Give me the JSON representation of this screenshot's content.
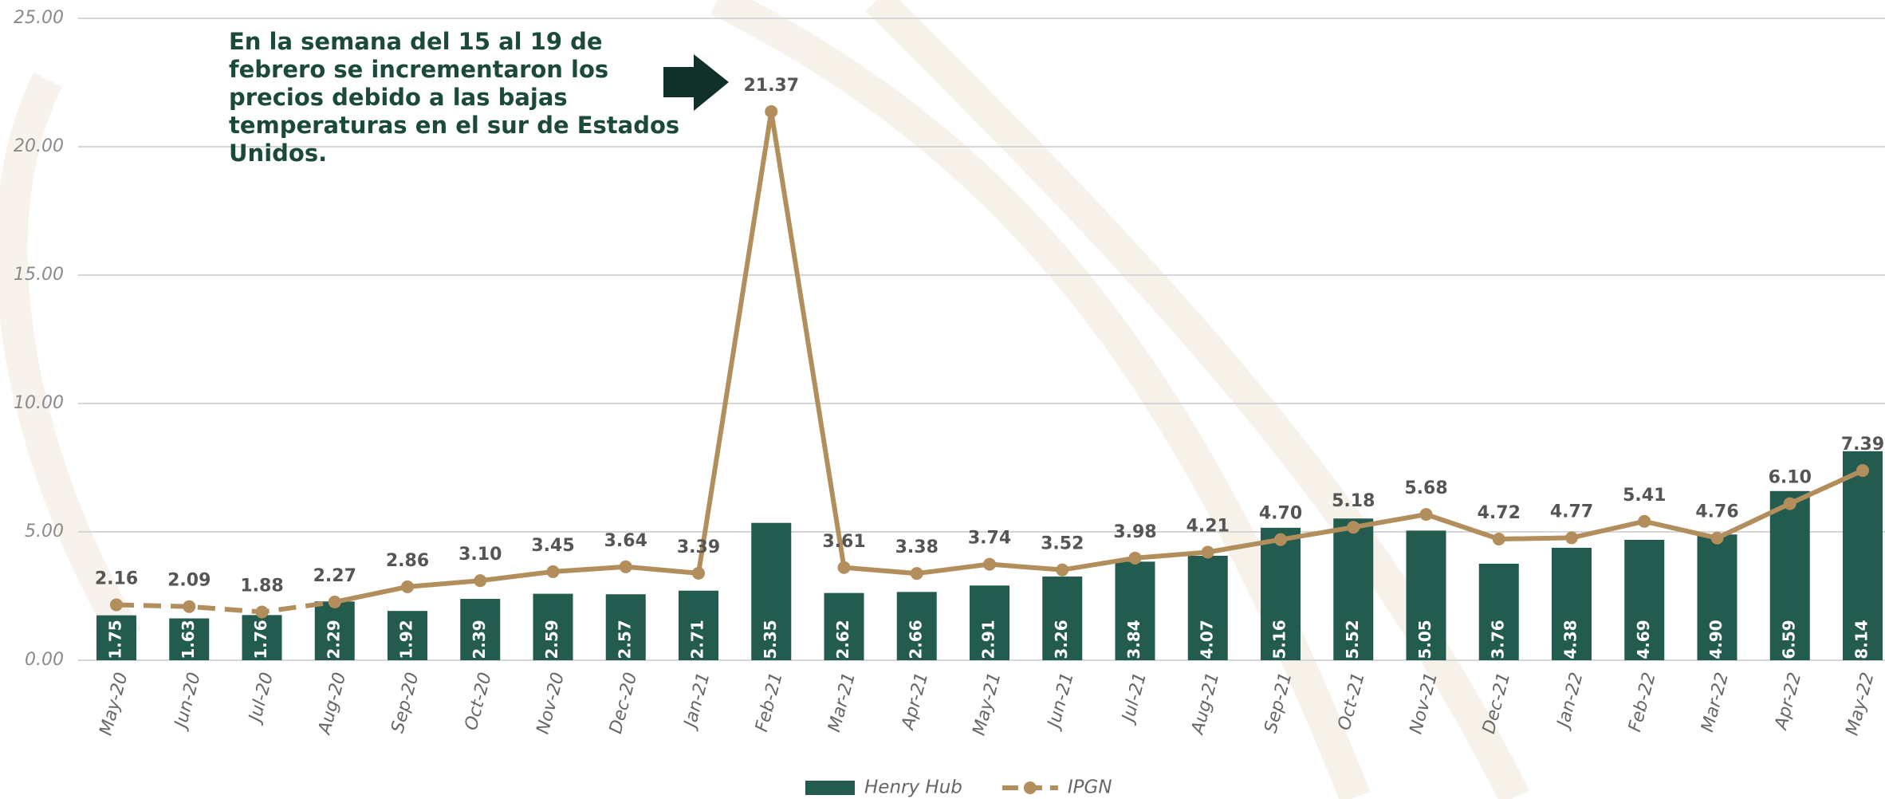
{
  "chart_data": {
    "type": "bar_line",
    "annotation": [
      "En la semana del 15 al 19 de",
      "febrero se incrementaron los",
      "precios debido a las bajas",
      "temperaturas en el sur de Estados",
      "Unidos."
    ],
    "categories": [
      "May-20",
      "Jun-20",
      "Jul-20",
      "Aug-20",
      "Sep-20",
      "Oct-20",
      "Nov-20",
      "Dec-20",
      "Jan-21",
      "Feb-21",
      "Mar-21",
      "Apr-21",
      "May-21",
      "Jun-21",
      "Jul-21",
      "Aug-21",
      "Sep-21",
      "Oct-21",
      "Nov-21",
      "Dec-21",
      "Jan-22",
      "Feb-22",
      "Mar-22",
      "Apr-22",
      "May-22"
    ],
    "series": [
      {
        "name": "Henry Hub",
        "type": "bar",
        "color": "#235b4e",
        "values": [
          1.75,
          1.63,
          1.76,
          2.29,
          1.92,
          2.39,
          2.59,
          2.57,
          2.71,
          5.35,
          2.62,
          2.66,
          2.91,
          3.26,
          3.84,
          4.07,
          5.16,
          5.52,
          5.05,
          3.76,
          4.38,
          4.69,
          4.9,
          6.59,
          8.14
        ],
        "value_labels": [
          "1.75",
          "1.63",
          "1.76",
          "2.29",
          "1.92",
          "2.39",
          "2.59",
          "2.57",
          "2.71",
          "5.35",
          "2.62",
          "2.66",
          "2.91",
          "3.26",
          "3.84",
          "4.07",
          "5.16",
          "5.52",
          "5.05",
          "3.76",
          "4.38",
          "4.69",
          "4.90",
          "6.59",
          "8.14"
        ]
      },
      {
        "name": "IPGN",
        "type": "line",
        "color": "#b38e5d",
        "dashed_until_index": 3,
        "values": [
          2.16,
          2.09,
          1.88,
          2.27,
          2.86,
          3.1,
          3.45,
          3.64,
          3.39,
          21.37,
          3.61,
          3.38,
          3.74,
          3.52,
          3.98,
          4.21,
          4.7,
          5.18,
          5.68,
          4.72,
          4.77,
          5.41,
          4.76,
          6.1,
          7.39
        ],
        "value_labels": [
          "2.16",
          "2.09",
          "1.88",
          "2.27",
          "2.86",
          "3.10",
          "3.45",
          "3.64",
          "3.39",
          "21.37",
          "3.61",
          "3.38",
          "3.74",
          "3.52",
          "3.98",
          "4.21",
          "4.70",
          "5.18",
          "5.68",
          "4.72",
          "4.77",
          "5.41",
          "4.76",
          "6.10",
          "7.39"
        ]
      }
    ],
    "ylim": [
      0,
      25
    ],
    "yticks": [
      {
        "value": 0,
        "label": "0.00"
      },
      {
        "value": 5,
        "label": "5.00"
      },
      {
        "value": 10,
        "label": "10.00"
      },
      {
        "value": 15,
        "label": "15.00"
      },
      {
        "value": 20,
        "label": "20.00"
      },
      {
        "value": 25,
        "label": "25.00"
      }
    ],
    "grid": true,
    "legend": "bottom"
  }
}
